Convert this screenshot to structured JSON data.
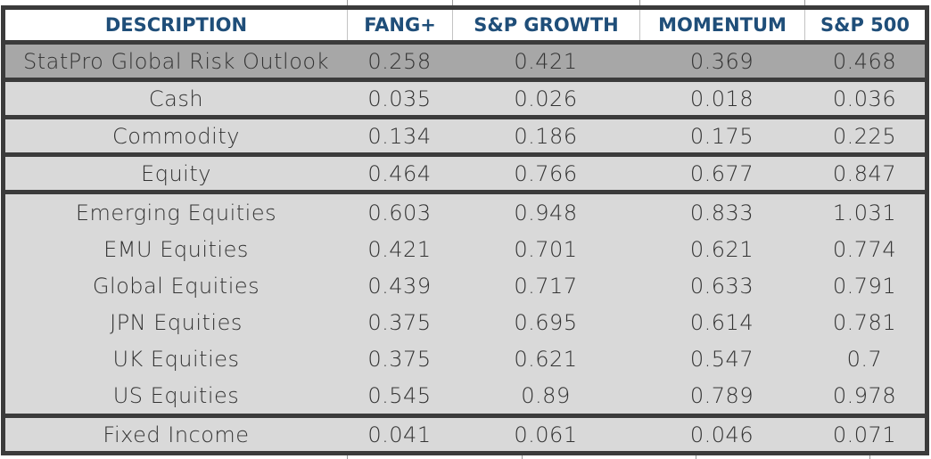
{
  "colors": {
    "header_text": "#1f4e79",
    "table_border": "#3b3b3b",
    "row_light_bg": "#d9d9d9",
    "row_dark_bg": "#a7a7a7",
    "body_text": "#333333",
    "header_separator": "#c3c3c3"
  },
  "table": {
    "columns": [
      "DESCRIPTION",
      "FANG+",
      "S&P GROWTH",
      "MOMENTUM",
      "S&P 500"
    ],
    "rows": [
      {
        "label": "StatPro Global Risk Outlook",
        "values": [
          "0.258",
          "0.421",
          "0.369",
          "0.468"
        ],
        "variant": "dark",
        "section_start": true,
        "tall": false
      },
      {
        "label": "Cash",
        "values": [
          "0.035",
          "0.026",
          "0.018",
          "0.036"
        ],
        "variant": "light",
        "section_start": true,
        "tall": false
      },
      {
        "label": "Commodity",
        "values": [
          "0.134",
          "0.186",
          "0.175",
          "0.225"
        ],
        "variant": "light",
        "section_start": true,
        "tall": false
      },
      {
        "label": "Equity",
        "values": [
          "0.464",
          "0.766",
          "0.677",
          "0.847"
        ],
        "variant": "light",
        "section_start": true,
        "tall": false
      },
      {
        "label": "Emerging Equities",
        "values": [
          "0.603",
          "0.948",
          "0.833",
          "1.031"
        ],
        "variant": "light",
        "section_start": true,
        "tall": true
      },
      {
        "label": "EMU Equities",
        "values": [
          "0.421",
          "0.701",
          "0.621",
          "0.774"
        ],
        "variant": "light",
        "section_start": false,
        "tall": true
      },
      {
        "label": "Global Equities",
        "values": [
          "0.439",
          "0.717",
          "0.633",
          "0.791"
        ],
        "variant": "light",
        "section_start": false,
        "tall": true
      },
      {
        "label": "JPN Equities",
        "values": [
          "0.375",
          "0.695",
          "0.614",
          "0.781"
        ],
        "variant": "light",
        "section_start": false,
        "tall": true
      },
      {
        "label": "UK Equities",
        "values": [
          "0.375",
          "0.621",
          "0.547",
          "0.7"
        ],
        "variant": "light",
        "section_start": false,
        "tall": true
      },
      {
        "label": "US Equities",
        "values": [
          "0.545",
          "0.89",
          "0.789",
          "0.978"
        ],
        "variant": "light",
        "section_start": false,
        "tall": true
      },
      {
        "label": "Fixed Income",
        "values": [
          "0.041",
          "0.061",
          "0.046",
          "0.071"
        ],
        "variant": "light",
        "section_start": true,
        "tall": false
      }
    ]
  }
}
